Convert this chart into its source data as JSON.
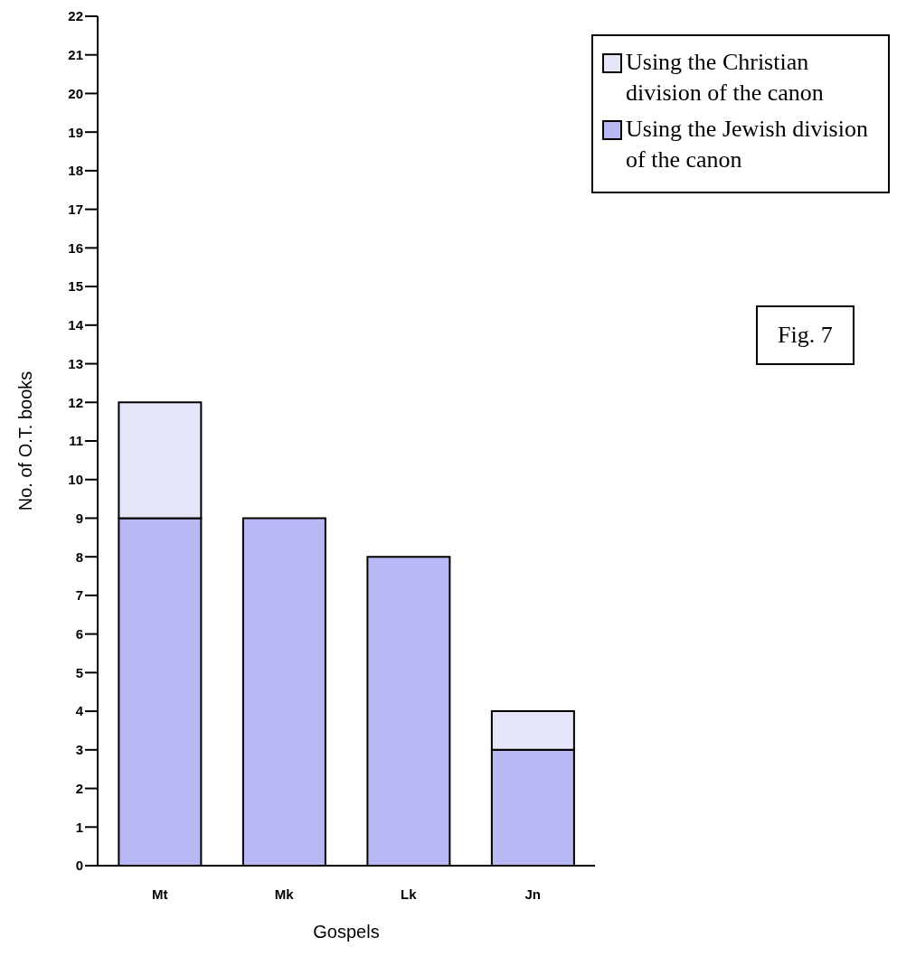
{
  "chart_data": {
    "type": "bar",
    "stacked": true,
    "xlabel": "Gospels",
    "ylabel": "No. of O.T. books",
    "categories": [
      "Mt",
      "Mk",
      "Lk",
      "Jn"
    ],
    "series": [
      {
        "name": "Using the Jewish division of the canon",
        "color": "#b8b8f4",
        "values": [
          9,
          9,
          8,
          3
        ]
      },
      {
        "name": "Using the Christian division of the canon",
        "color": "#e6e6fa",
        "values": [
          3,
          0,
          0,
          1
        ]
      }
    ],
    "ylim": [
      0,
      22
    ],
    "yticks": [
      0,
      1,
      2,
      3,
      4,
      5,
      6,
      7,
      8,
      9,
      10,
      11,
      12,
      13,
      14,
      15,
      16,
      17,
      18,
      19,
      20,
      21,
      22
    ],
    "grid": false,
    "legend": "top right",
    "annotations": [
      "Fig. 7"
    ]
  }
}
